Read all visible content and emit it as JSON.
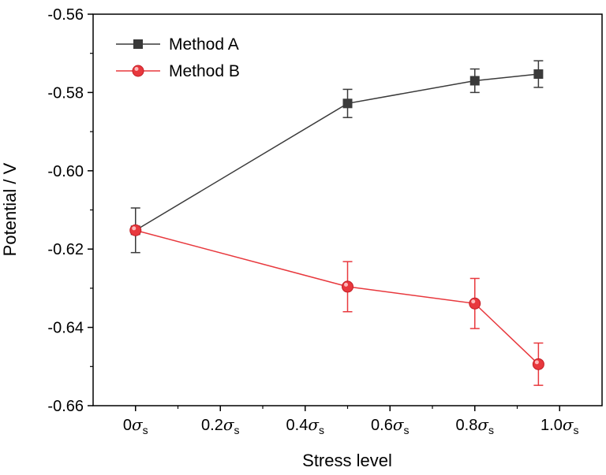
{
  "chart_data": {
    "type": "line",
    "title": "",
    "xlabel": "Stress level",
    "ylabel": "Potential / V",
    "xlim": [
      -0.1,
      1.1
    ],
    "ylim": [
      -0.66,
      -0.56
    ],
    "x_ticks": [
      {
        "value": 0.0,
        "coef": "0",
        "unit": "σ",
        "sub": "s"
      },
      {
        "value": 0.2,
        "coef": "0.2",
        "unit": "σ",
        "sub": "s"
      },
      {
        "value": 0.4,
        "coef": "0.4",
        "unit": "σ",
        "sub": "s"
      },
      {
        "value": 0.6,
        "coef": "0.6",
        "unit": "σ",
        "sub": "s"
      },
      {
        "value": 0.8,
        "coef": "0.8",
        "unit": "σ",
        "sub": "s"
      },
      {
        "value": 1.0,
        "coef": "1.0",
        "unit": "σ",
        "sub": "s"
      }
    ],
    "y_ticks": [
      {
        "value": -0.56,
        "label": "-0.56"
      },
      {
        "value": -0.58,
        "label": "-0.58"
      },
      {
        "value": -0.6,
        "label": "-0.60"
      },
      {
        "value": -0.62,
        "label": "-0.62"
      },
      {
        "value": -0.64,
        "label": "-0.64"
      },
      {
        "value": -0.66,
        "label": "-0.66"
      }
    ],
    "legend_position": "top-left",
    "grid": false,
    "series": [
      {
        "name": "Method A",
        "color": "#3a3a3a",
        "marker": "square",
        "x": [
          0.0,
          0.5,
          0.8,
          0.95
        ],
        "y": [
          -0.6152,
          -0.5828,
          -0.577,
          -0.5753
        ],
        "err": [
          0.0057,
          0.0036,
          0.003,
          0.0034
        ]
      },
      {
        "name": "Method B",
        "color": "#e8383d",
        "marker": "circle",
        "x": [
          0.0,
          0.5,
          0.8,
          0.95
        ],
        "y": [
          -0.6152,
          -0.6296,
          -0.6339,
          -0.6494
        ],
        "err": [
          0.0,
          0.0064,
          0.0064,
          0.0054
        ]
      }
    ]
  }
}
